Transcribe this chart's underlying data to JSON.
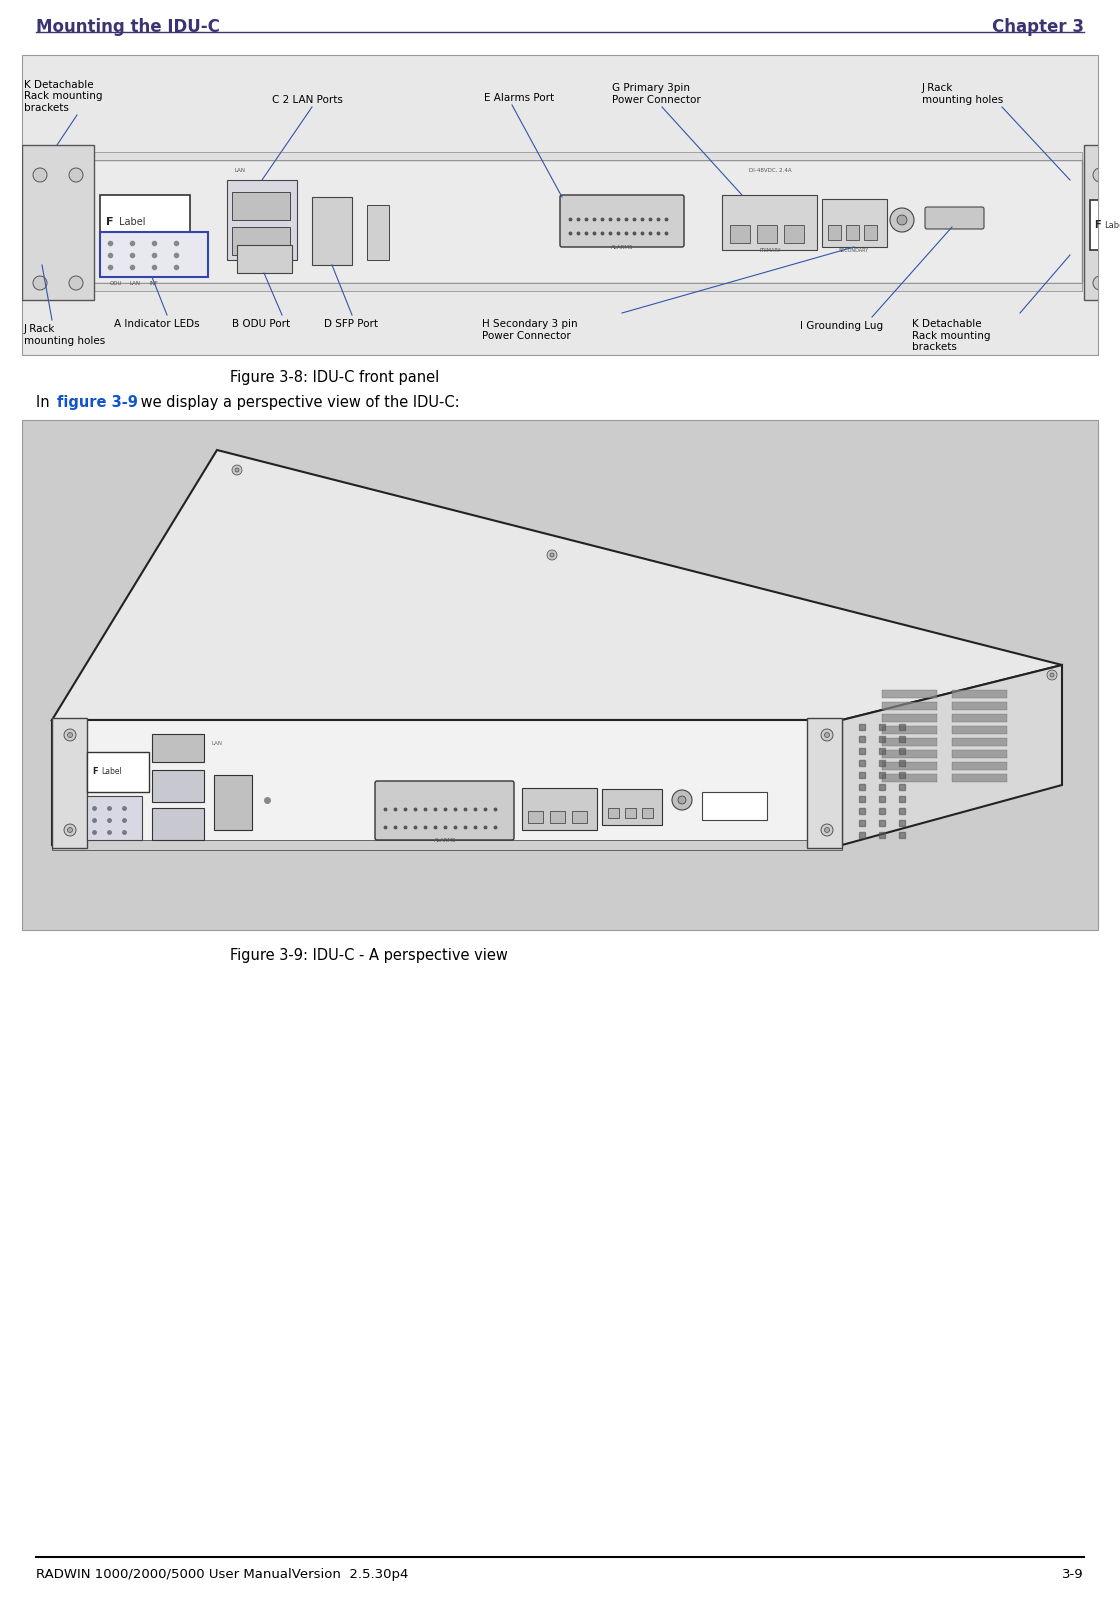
{
  "page_bg": "#ffffff",
  "header_left": "Mounting the IDU-C",
  "header_right": "Chapter 3",
  "header_color": "#3b3472",
  "header_fontsize": 12,
  "fig1_caption": "Figure 3-8: IDU-C front panel",
  "fig2_intro_normal1": "In ",
  "fig2_intro_link": "figure 3-9",
  "fig2_intro_normal2": " we display a perspective view of the IDU-C:",
  "fig2_caption": "Figure 3-9: IDU-C - A perspective view",
  "caption_fontsize": 10.5,
  "body_fontsize": 10.5,
  "link_color": "#1155cc",
  "text_color": "#000000",
  "footer_left": "RADWIN 1000/2000/5000 User ManualVersion  2.5.30p4",
  "footer_right": "3-9",
  "footer_fontsize": 9.5,
  "footer_color": "#000000",
  "fig1_border_color": "#999999",
  "fig1_bg": "#e8e8e8",
  "fig2_border_color": "#999999",
  "fig2_bg": "#cccccc",
  "panel_face": "#f5f5f5",
  "panel_edge": "#333333",
  "bracket_face": "#dcdcdc",
  "label_line_color": "#3355aa",
  "annotation_color": "#000000",
  "ann_fs": 7.5
}
